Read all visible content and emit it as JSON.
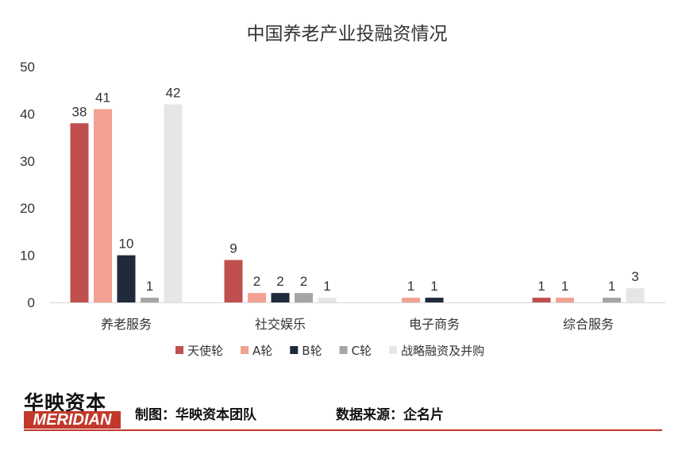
{
  "chart_data": {
    "type": "bar",
    "title": "中国养老产业投融资情况",
    "categories": [
      "养老服务",
      "社交娱乐",
      "电子商务",
      "综合服务"
    ],
    "series": [
      {
        "name": "天使轮",
        "color": "#c0504d",
        "values": [
          38,
          9,
          null,
          1
        ]
      },
      {
        "name": "A轮",
        "color": "#f2a192",
        "values": [
          41,
          2,
          1,
          1
        ]
      },
      {
        "name": "B轮",
        "color": "#1f2a3a",
        "values": [
          10,
          2,
          1,
          null
        ]
      },
      {
        "name": "C轮",
        "color": "#a5a5a5",
        "values": [
          1,
          2,
          null,
          1
        ]
      },
      {
        "name": "战略融资及并购",
        "color": "#e6e6e6",
        "values": [
          42,
          1,
          null,
          3
        ]
      }
    ],
    "ylim": [
      0,
      50
    ],
    "yticks": [
      0,
      10,
      20,
      30,
      40,
      50
    ],
    "grid": false,
    "legend": "bottom"
  },
  "footer": {
    "logo_cn": "华映资本",
    "logo_en": "MERIDIAN",
    "credit": "制图：华映资本团队",
    "source": "数据来源：企名片"
  }
}
